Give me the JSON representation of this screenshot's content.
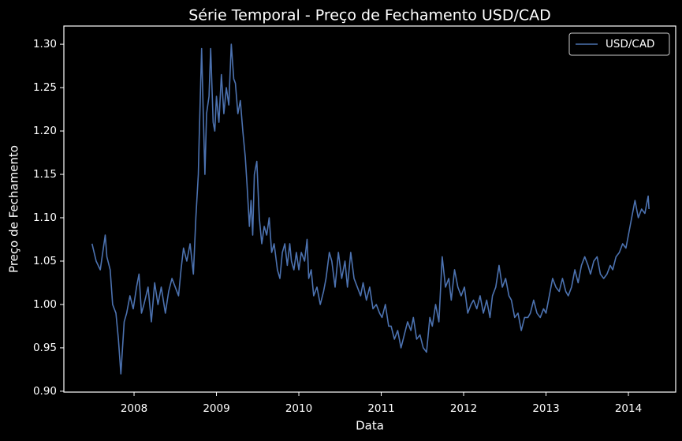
{
  "chart_data": {
    "type": "line",
    "title": "Série Temporal - Preço de Fechamento USD/CAD",
    "x_label": "Data",
    "y_label": "Preço de Fechamento",
    "legend": "upper right",
    "grid": false,
    "xlim": [
      2007.148,
      2014.574
    ],
    "xticks": [
      2008,
      2009,
      2010,
      2011,
      2012,
      2013,
      2014
    ],
    "ylim": [
      0.899,
      1.321
    ],
    "yticks": [
      {
        "value": 0.9,
        "label": "0.90"
      },
      0.95,
      {
        "value": 1.0,
        "label": "1.00"
      },
      1.05,
      {
        "value": 1.1,
        "label": "1.10"
      },
      1.15,
      {
        "value": 1.2,
        "label": "1.20"
      },
      1.25,
      {
        "value": 1.3,
        "label": "1.30"
      }
    ],
    "series": [
      {
        "name": "USD/CAD",
        "color": "#4c72b0",
        "x": [
          2007.49,
          2007.54,
          2007.59,
          2007.62,
          2007.65,
          2007.67,
          2007.71,
          2007.74,
          2007.78,
          2007.81,
          2007.84,
          2007.88,
          2007.91,
          2007.95,
          2007.99,
          2008.03,
          2008.06,
          2008.09,
          2008.12,
          2008.17,
          2008.21,
          2008.25,
          2008.29,
          2008.33,
          2008.38,
          2008.42,
          2008.46,
          2008.5,
          2008.54,
          2008.57,
          2008.6,
          2008.64,
          2008.68,
          2008.72,
          2008.75,
          2008.78,
          2008.79,
          2008.82,
          2008.84,
          2008.86,
          2008.88,
          2008.91,
          2008.93,
          2008.96,
          2008.98,
          2009.0,
          2009.03,
          2009.06,
          2009.09,
          2009.12,
          2009.15,
          2009.18,
          2009.21,
          2009.23,
          2009.26,
          2009.29,
          2009.32,
          2009.35,
          2009.37,
          2009.4,
          2009.42,
          2009.44,
          2009.46,
          2009.49,
          2009.52,
          2009.55,
          2009.58,
          2009.61,
          2009.64,
          2009.67,
          2009.7,
          2009.74,
          2009.77,
          2009.8,
          2009.83,
          2009.86,
          2009.89,
          2009.91,
          2009.94,
          2009.97,
          2010.0,
          2010.03,
          2010.07,
          2010.1,
          2010.12,
          2010.15,
          2010.18,
          2010.22,
          2010.26,
          2010.3,
          2010.33,
          2010.37,
          2010.4,
          2010.44,
          2010.48,
          2010.52,
          2010.56,
          2010.59,
          2010.63,
          2010.67,
          2010.71,
          2010.75,
          2010.78,
          2010.82,
          2010.86,
          2010.9,
          2010.94,
          2010.98,
          2011.01,
          2011.05,
          2011.09,
          2011.12,
          2011.16,
          2011.2,
          2011.24,
          2011.28,
          2011.32,
          2011.36,
          2011.39,
          2011.43,
          2011.47,
          2011.51,
          2011.55,
          2011.59,
          2011.62,
          2011.66,
          2011.7,
          2011.74,
          2011.78,
          2011.82,
          2011.85,
          2011.89,
          2011.93,
          2011.97,
          2012.01,
          2012.05,
          2012.09,
          2012.12,
          2012.16,
          2012.2,
          2012.24,
          2012.28,
          2012.32,
          2012.35,
          2012.39,
          2012.43,
          2012.47,
          2012.51,
          2012.55,
          2012.58,
          2012.62,
          2012.66,
          2012.7,
          2012.74,
          2012.78,
          2012.81,
          2012.85,
          2012.89,
          2012.93,
          2012.97,
          2013.0,
          2013.04,
          2013.08,
          2013.12,
          2013.16,
          2013.2,
          2013.24,
          2013.27,
          2013.31,
          2013.35,
          2013.39,
          2013.43,
          2013.47,
          2013.51,
          2013.54,
          2013.58,
          2013.62,
          2013.66,
          2013.7,
          2013.74,
          2013.78,
          2013.81,
          2013.85,
          2013.89,
          2013.93,
          2013.97,
          2014.0,
          2014.04,
          2014.08,
          2014.12,
          2014.16,
          2014.2,
          2014.24,
          2014.25
        ],
        "values": [
          1.07,
          1.05,
          1.04,
          1.06,
          1.08,
          1.055,
          1.04,
          1.0,
          0.99,
          0.96,
          0.92,
          0.98,
          0.99,
          1.01,
          0.995,
          1.02,
          1.035,
          0.99,
          1.0,
          1.02,
          0.98,
          1.025,
          1.0,
          1.02,
          0.99,
          1.015,
          1.03,
          1.02,
          1.01,
          1.04,
          1.065,
          1.05,
          1.07,
          1.035,
          1.1,
          1.15,
          1.19,
          1.295,
          1.22,
          1.15,
          1.22,
          1.24,
          1.295,
          1.21,
          1.2,
          1.24,
          1.21,
          1.265,
          1.22,
          1.25,
          1.23,
          1.3,
          1.26,
          1.255,
          1.22,
          1.235,
          1.2,
          1.17,
          1.14,
          1.09,
          1.12,
          1.08,
          1.15,
          1.165,
          1.1,
          1.07,
          1.09,
          1.08,
          1.1,
          1.06,
          1.07,
          1.04,
          1.03,
          1.06,
          1.07,
          1.045,
          1.07,
          1.05,
          1.04,
          1.06,
          1.04,
          1.06,
          1.05,
          1.075,
          1.03,
          1.04,
          1.01,
          1.02,
          1.0,
          1.015,
          1.03,
          1.06,
          1.05,
          1.02,
          1.06,
          1.03,
          1.05,
          1.02,
          1.06,
          1.03,
          1.02,
          1.01,
          1.025,
          1.005,
          1.02,
          0.995,
          1.0,
          0.99,
          0.985,
          1.0,
          0.975,
          0.975,
          0.96,
          0.97,
          0.95,
          0.965,
          0.98,
          0.97,
          0.985,
          0.96,
          0.965,
          0.95,
          0.945,
          0.985,
          0.975,
          1.0,
          0.98,
          1.055,
          1.02,
          1.03,
          1.005,
          1.04,
          1.02,
          1.01,
          1.02,
          0.99,
          1.0,
          1.005,
          0.995,
          1.01,
          0.99,
          1.005,
          0.985,
          1.01,
          1.02,
          1.045,
          1.02,
          1.03,
          1.01,
          1.005,
          0.985,
          0.99,
          0.97,
          0.985,
          0.985,
          0.99,
          1.005,
          0.99,
          0.985,
          0.995,
          0.99,
          1.01,
          1.03,
          1.02,
          1.015,
          1.03,
          1.015,
          1.01,
          1.02,
          1.04,
          1.025,
          1.045,
          1.055,
          1.045,
          1.035,
          1.05,
          1.055,
          1.035,
          1.03,
          1.035,
          1.045,
          1.04,
          1.055,
          1.06,
          1.07,
          1.065,
          1.08,
          1.1,
          1.12,
          1.1,
          1.11,
          1.105,
          1.125,
          1.11
        ]
      }
    ]
  }
}
